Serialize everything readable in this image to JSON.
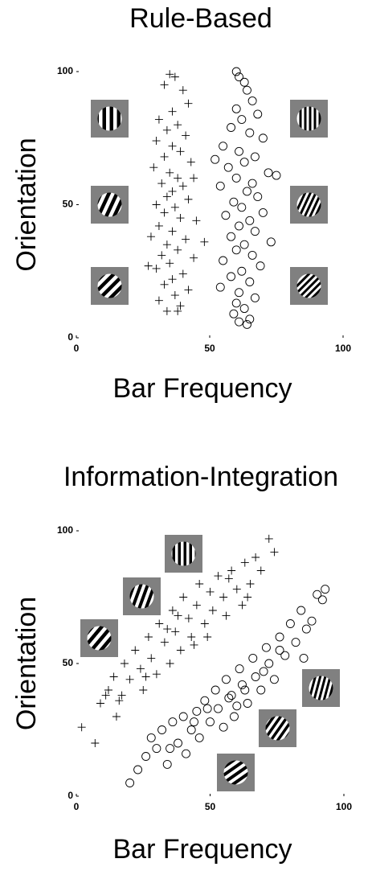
{
  "chart_data": [
    {
      "type": "scatter",
      "title": "Rule-Based",
      "x_label": "Bar Frequency",
      "y_label": "Orientation",
      "xlim": [
        0,
        100
      ],
      "ylim": [
        0,
        100
      ],
      "xticks": [
        0,
        50,
        100
      ],
      "yticks": [
        0,
        50,
        100
      ],
      "series": [
        {
          "marker": "plus",
          "color": "#000000",
          "x": [
            35,
            37,
            33,
            40,
            42,
            36,
            31,
            38,
            34,
            41,
            30,
            36,
            39,
            33,
            43,
            29,
            35,
            38,
            32,
            40,
            36,
            34,
            42,
            30,
            37,
            33,
            39,
            45,
            31,
            36,
            28,
            41,
            34,
            38,
            32,
            44,
            35,
            30,
            40,
            36,
            33,
            42,
            37,
            31,
            39,
            34,
            38,
            27,
            48,
            44
          ],
          "values": [
            99,
            98,
            95,
            93,
            88,
            85,
            82,
            80,
            78,
            76,
            74,
            72,
            70,
            68,
            66,
            64,
            62,
            60,
            58,
            57,
            55,
            53,
            52,
            50,
            49,
            47,
            45,
            44,
            42,
            40,
            38,
            37,
            35,
            33,
            31,
            30,
            28,
            26,
            24,
            22,
            20,
            18,
            16,
            14,
            12,
            10,
            10,
            27,
            36,
            60
          ]
        },
        {
          "marker": "circle",
          "color": "#000000",
          "x": [
            60,
            61,
            63,
            64,
            66,
            60,
            68,
            62,
            58,
            65,
            70,
            55,
            61,
            67,
            63,
            57,
            72,
            60,
            66,
            54,
            64,
            68,
            59,
            62,
            70,
            56,
            65,
            61,
            67,
            58,
            73,
            63,
            60,
            66,
            55,
            69,
            62,
            58,
            65,
            54,
            61,
            67,
            60,
            63,
            59,
            61,
            64,
            65,
            52,
            75
          ],
          "values": [
            100,
            98,
            96,
            93,
            89,
            86,
            84,
            82,
            79,
            77,
            75,
            72,
            70,
            68,
            66,
            64,
            62,
            60,
            58,
            57,
            55,
            53,
            51,
            49,
            47,
            46,
            44,
            42,
            40,
            38,
            36,
            35,
            33,
            31,
            29,
            27,
            25,
            23,
            21,
            19,
            17,
            15,
            13,
            11,
            9,
            6,
            5,
            7,
            67,
            61
          ]
        }
      ]
    },
    {
      "type": "scatter",
      "title": "Information-Integration",
      "x_label": "Bar Frequency",
      "y_label": "Orientation",
      "xlim": [
        0,
        100
      ],
      "ylim": [
        0,
        100
      ],
      "xticks": [
        0,
        50,
        100
      ],
      "yticks": [
        0,
        50,
        100
      ],
      "series": [
        {
          "marker": "plus",
          "color": "#000000",
          "x": [
            2,
            7,
            9,
            12,
            15,
            14,
            17,
            18,
            20,
            22,
            24,
            25,
            27,
            28,
            30,
            31,
            33,
            35,
            36,
            37,
            39,
            40,
            42,
            43,
            45,
            46,
            48,
            50,
            51,
            53,
            55,
            56,
            58,
            60,
            62,
            63,
            65,
            67,
            69,
            72,
            74,
            38,
            26,
            44,
            57,
            64,
            34,
            49,
            16,
            11
          ],
          "values": [
            26,
            20,
            35,
            40,
            30,
            45,
            38,
            50,
            44,
            55,
            48,
            40,
            60,
            52,
            46,
            65,
            58,
            50,
            70,
            62,
            55,
            75,
            67,
            60,
            72,
            80,
            65,
            77,
            70,
            83,
            75,
            68,
            85,
            78,
            72,
            88,
            80,
            90,
            85,
            97,
            92,
            68,
            45,
            57,
            82,
            75,
            63,
            60,
            36,
            38
          ]
        },
        {
          "marker": "circle",
          "color": "#000000",
          "x": [
            20,
            23,
            26,
            28,
            30,
            32,
            34,
            36,
            38,
            40,
            41,
            43,
            45,
            46,
            48,
            50,
            52,
            53,
            55,
            56,
            58,
            59,
            61,
            62,
            64,
            66,
            67,
            69,
            71,
            72,
            74,
            76,
            78,
            80,
            82,
            84,
            86,
            88,
            90,
            92,
            93,
            57,
            63,
            49,
            70,
            44,
            35,
            60,
            76,
            85
          ],
          "values": [
            5,
            10,
            15,
            22,
            18,
            25,
            12,
            28,
            20,
            30,
            16,
            25,
            32,
            22,
            36,
            28,
            40,
            33,
            26,
            44,
            38,
            30,
            48,
            42,
            35,
            52,
            45,
            40,
            56,
            50,
            44,
            60,
            53,
            65,
            58,
            70,
            63,
            66,
            76,
            74,
            78,
            37,
            40,
            33,
            47,
            28,
            18,
            34,
            55,
            52
          ]
        }
      ]
    }
  ]
}
